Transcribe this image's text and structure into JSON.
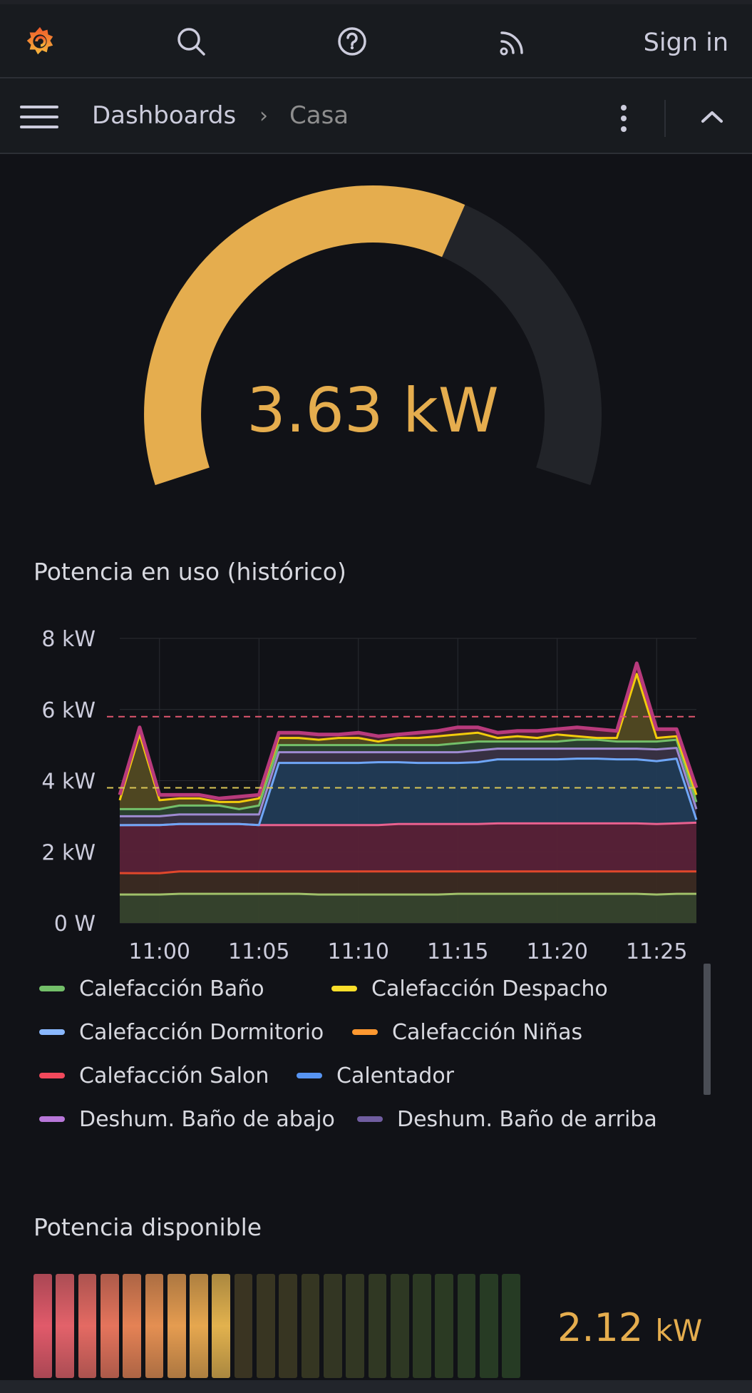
{
  "topbar": {
    "signin_label": "Sign in",
    "icons": [
      "grafana-logo-icon",
      "search-icon",
      "help-icon",
      "rss-icon"
    ]
  },
  "nav": {
    "breadcrumb_root": "Dashboards",
    "breadcrumb_separator": "›",
    "breadcrumb_current": "Casa"
  },
  "gauge": {
    "value_text": "3.63 kW",
    "value": 3.63,
    "fill_fraction": 0.61,
    "color": "#e5ad4e",
    "track_color": "#222429"
  },
  "timeseries": {
    "title": "Potencia en uso (histórico)",
    "legend": [
      {
        "label": "Calefacción Baño",
        "color": "#73bf69"
      },
      {
        "label": "Calefacción Despacho",
        "color": "#fade2a"
      },
      {
        "label": "Calefacción Dormitorio",
        "color": "#8ab8ff"
      },
      {
        "label": "Calefacción Niñas",
        "color": "#ff9830"
      },
      {
        "label": "Calefacción Salon",
        "color": "#f2495c"
      },
      {
        "label": "Calentador",
        "color": "#5794f2"
      },
      {
        "label": "Deshum. Baño de abajo",
        "color": "#b877d9"
      },
      {
        "label": "Deshum. Baño de arriba",
        "color": "#705da0"
      }
    ]
  },
  "bargauge": {
    "title": "Potencia disponible",
    "value_number": "2.12",
    "value_unit": "kW",
    "lit_segments": 9,
    "total_segments": 22
  },
  "chart_data": {
    "type": "area",
    "title": "Potencia en uso (histórico)",
    "xlabel": "",
    "ylabel": "",
    "x_ticks": [
      "11:00",
      "11:05",
      "11:10",
      "11:15",
      "11:20",
      "11:25"
    ],
    "y_ticks": [
      "0 W",
      "2 kW",
      "4 kW",
      "6 kW",
      "8 kW"
    ],
    "ylim": [
      0,
      8
    ],
    "x_range_min": [
      -2,
      27
    ],
    "grid": true,
    "thresholds": [
      {
        "value": 5.8,
        "color": "#e0566f"
      },
      {
        "value": 3.8,
        "color": "#d9c655"
      }
    ],
    "x": [
      -2,
      -1,
      0,
      1,
      2,
      3,
      4,
      5,
      6,
      7,
      8,
      9,
      10,
      11,
      12,
      13,
      14,
      15,
      16,
      17,
      18,
      19,
      20,
      21,
      22,
      23,
      24,
      25,
      26,
      27
    ],
    "stacked_bands": [
      {
        "name": "",
        "top": [
          0.8,
          0.8,
          0.8,
          0.82,
          0.82,
          0.82,
          0.82,
          0.82,
          0.82,
          0.82,
          0.8,
          0.8,
          0.8,
          0.8,
          0.8,
          0.8,
          0.8,
          0.82,
          0.82,
          0.82,
          0.82,
          0.82,
          0.82,
          0.82,
          0.82,
          0.82,
          0.82,
          0.8,
          0.82,
          0.82
        ],
        "fill": "#37452d",
        "line": "#a0c06a"
      },
      {
        "name": "",
        "top": [
          1.4,
          1.4,
          1.4,
          1.45,
          1.45,
          1.45,
          1.45,
          1.45,
          1.45,
          1.45,
          1.45,
          1.45,
          1.45,
          1.45,
          1.45,
          1.45,
          1.45,
          1.45,
          1.45,
          1.45,
          1.45,
          1.45,
          1.45,
          1.45,
          1.45,
          1.45,
          1.45,
          1.45,
          1.45,
          1.45
        ],
        "fill": "#3c2b22",
        "line": "#e0472b"
      },
      {
        "name": "",
        "top": [
          2.75,
          2.75,
          2.75,
          2.78,
          2.78,
          2.78,
          2.78,
          2.75,
          2.75,
          2.75,
          2.75,
          2.75,
          2.75,
          2.75,
          2.78,
          2.78,
          2.78,
          2.78,
          2.78,
          2.8,
          2.8,
          2.8,
          2.8,
          2.8,
          2.8,
          2.8,
          2.8,
          2.78,
          2.8,
          2.82
        ],
        "fill": "#5a2238",
        "line": "#e8618f"
      },
      {
        "name": "",
        "top": [
          2.75,
          2.75,
          2.75,
          2.78,
          2.78,
          2.78,
          2.78,
          2.75,
          4.5,
          4.5,
          4.5,
          4.5,
          4.5,
          4.52,
          4.52,
          4.5,
          4.5,
          4.5,
          4.52,
          4.6,
          4.6,
          4.6,
          4.6,
          4.62,
          4.62,
          4.6,
          4.6,
          4.55,
          4.62,
          2.9
        ],
        "fill": "#223c56",
        "line": "#6fa6f7"
      },
      {
        "name": "",
        "top": [
          3.0,
          3.0,
          3.0,
          3.05,
          3.05,
          3.05,
          3.05,
          3.05,
          4.8,
          4.8,
          4.8,
          4.8,
          4.8,
          4.8,
          4.8,
          4.8,
          4.8,
          4.8,
          4.85,
          4.9,
          4.9,
          4.9,
          4.9,
          4.9,
          4.9,
          4.9,
          4.9,
          4.88,
          4.92,
          3.2
        ],
        "fill": "#3a3345",
        "line": "#9e8ad1"
      },
      {
        "name": "",
        "top": [
          3.2,
          3.2,
          3.2,
          3.3,
          3.3,
          3.3,
          3.2,
          3.3,
          5.0,
          5.0,
          5.0,
          5.0,
          5.0,
          5.0,
          5.0,
          5.0,
          5.0,
          5.05,
          5.1,
          5.1,
          5.1,
          5.1,
          5.1,
          5.15,
          5.15,
          5.1,
          5.1,
          5.1,
          5.15,
          3.4
        ],
        "fill": "#2c4230",
        "line": "#73bf69"
      },
      {
        "name": "",
        "top": [
          3.45,
          5.3,
          3.45,
          3.5,
          3.5,
          3.4,
          3.4,
          3.5,
          5.2,
          5.2,
          5.15,
          5.2,
          5.2,
          5.1,
          5.2,
          5.2,
          5.25,
          5.3,
          5.35,
          5.2,
          5.25,
          5.2,
          5.3,
          5.25,
          5.2,
          5.2,
          7.0,
          5.2,
          5.25,
          3.6
        ],
        "fill": "#524a22",
        "line": "#f2cc0c"
      },
      {
        "name": "",
        "top": [
          3.6,
          5.5,
          3.6,
          3.6,
          3.6,
          3.5,
          3.55,
          3.6,
          5.35,
          5.35,
          5.3,
          5.3,
          5.35,
          5.25,
          5.3,
          5.35,
          5.4,
          5.5,
          5.5,
          5.35,
          5.4,
          5.4,
          5.45,
          5.5,
          5.45,
          5.4,
          7.3,
          5.45,
          5.45,
          3.8
        ],
        "fill": "#4a2230",
        "line": "#b83a7c"
      }
    ]
  }
}
